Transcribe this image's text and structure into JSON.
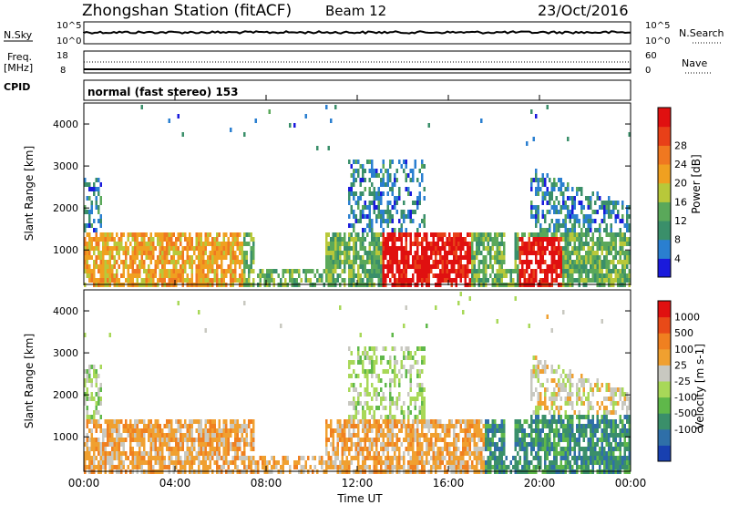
{
  "header": {
    "station": "Zhongshan Station (fitACF)",
    "beam": "Beam 12",
    "date": "23/Oct/2016"
  },
  "nsky_panel": {
    "label": "N.Sky",
    "right_label": "N.Search",
    "left_ticks": [
      "10^5",
      "10^0"
    ],
    "right_ticks": [
      "10^5",
      "10^0"
    ]
  },
  "freq_panel": {
    "label_line1": "Freq.",
    "label_line2": "[MHz]",
    "right_label": "Nave",
    "left_ticks": [
      "18",
      "8"
    ],
    "right_ticks": [
      "60",
      "0"
    ]
  },
  "cpid": {
    "label": "CPID",
    "value": "normal (fast stereo) 153"
  },
  "chart_data": [
    {
      "type": "heatmap",
      "panel": "power",
      "ylabel": "Slant Range [km]",
      "xlabel": "",
      "x_range_hours": [
        0,
        24
      ],
      "ylim": [
        180,
        4500
      ],
      "yticks": [
        "1000",
        "2000",
        "3000",
        "4000"
      ],
      "colorbar": {
        "label": "Power [dB]",
        "ticks": [
          "4",
          "8",
          "12",
          "16",
          "20",
          "24",
          "28"
        ],
        "colors": [
          "#1a1adc",
          "#2a7fd0",
          "#3a8f6a",
          "#5aa85a",
          "#b8c83a",
          "#f0a020",
          "#f07820",
          "#e84018",
          "#e01010"
        ]
      }
    },
    {
      "type": "heatmap",
      "panel": "velocity",
      "ylabel": "Slant Range [km]",
      "xlabel": "Time UT",
      "x_range_hours": [
        0,
        24
      ],
      "ylim": [
        180,
        4500
      ],
      "yticks": [
        "1000",
        "2000",
        "3000",
        "4000"
      ],
      "xticks": [
        "00:00",
        "04:00",
        "08:00",
        "12:00",
        "16:00",
        "20:00",
        "00:00"
      ],
      "colorbar": {
        "label": "Velocity [m s-1]",
        "ticks": [
          "1000",
          "500",
          "100",
          "25",
          "-25",
          "-100",
          "-500",
          "-1000"
        ],
        "colors": [
          "#1840b0",
          "#2f6fa8",
          "#3a8f6a",
          "#5fb84a",
          "#a8d858",
          "#c8c8c0",
          "#f0a030",
          "#f08020",
          "#e84a18",
          "#e01010"
        ]
      }
    }
  ]
}
